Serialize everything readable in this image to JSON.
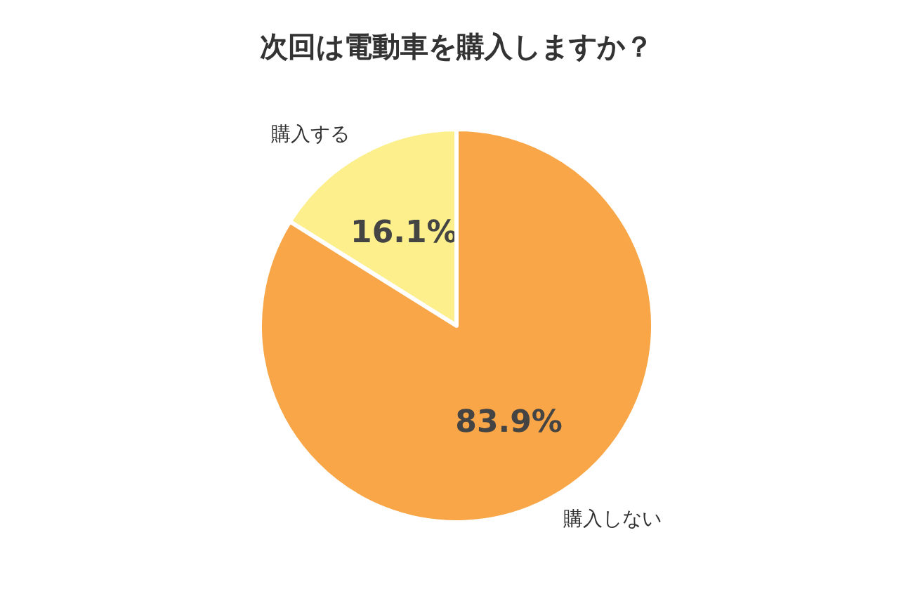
{
  "chart_data": {
    "type": "pie",
    "title": "次回は電動車を購入しますか？",
    "categories": [
      "購入する",
      "購入しない"
    ],
    "values": [
      16.1,
      83.9
    ],
    "colors": [
      "#fcef8c",
      "#f8a647"
    ],
    "value_labels": [
      "16.1%",
      "83.9%"
    ]
  }
}
